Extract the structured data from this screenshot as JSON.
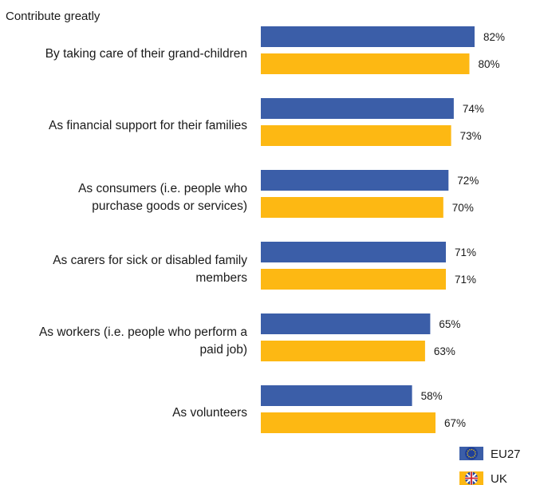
{
  "chart_data": {
    "type": "bar",
    "orientation": "horizontal",
    "title": "Contribute greatly",
    "xlabel": "",
    "ylabel": "",
    "xlim": [
      0,
      100
    ],
    "grid": false,
    "legend_position": "bottom-right",
    "categories": [
      [
        "By taking care of their grand-children"
      ],
      [
        "As financial support for their families"
      ],
      [
        "As consumers (i.e. people who",
        "purchase goods or services)"
      ],
      [
        "As carers for sick or disabled family",
        "members"
      ],
      [
        "As workers (i.e. people who perform a",
        "paid job)"
      ],
      [
        "As volunteers"
      ]
    ],
    "series": [
      {
        "name": "EU27",
        "color": "#3b5ea8",
        "icon": "eu-flag-icon",
        "values": [
          82,
          74,
          72,
          71,
          65,
          58
        ],
        "labels": [
          "82%",
          "74%",
          "72%",
          "71%",
          "65%",
          "58%"
        ]
      },
      {
        "name": "UK",
        "color": "#fdb813",
        "icon": "uk-flag-icon",
        "values": [
          80,
          73,
          70,
          71,
          63,
          67
        ],
        "labels": [
          "80%",
          "73%",
          "70%",
          "71%",
          "63%",
          "67%"
        ]
      }
    ]
  }
}
